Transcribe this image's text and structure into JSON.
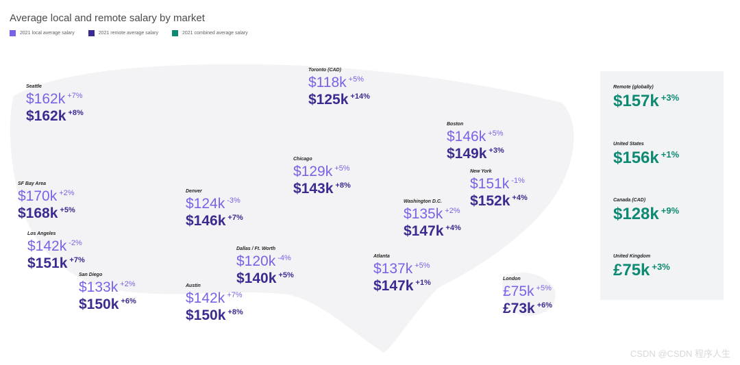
{
  "title": "Average local and remote salary by market",
  "legend": [
    {
      "label": "2021 local average salary",
      "color": "#7b61e8"
    },
    {
      "label": "2021 remote average salary",
      "color": "#3b2a8f"
    },
    {
      "label": "2021 combined average salary",
      "color": "#0e8a73"
    }
  ],
  "colors": {
    "local": "#7b61e8",
    "remote": "#3b2a8f",
    "combined": "#0e8a73"
  },
  "watermark": "CSDN @CSDN 程序人生",
  "chart_data": {
    "type": "table",
    "title": "Average local and remote salary by market",
    "markets": [
      {
        "city": "Seattle",
        "local": "$162k",
        "local_change": "+7%",
        "remote": "$162k",
        "remote_change": "+8%"
      },
      {
        "city": "Toronto (CAD)",
        "local": "$118k",
        "local_change": "+5%",
        "remote": "$125k",
        "remote_change": "+14%"
      },
      {
        "city": "Boston",
        "local": "$146k",
        "local_change": "+5%",
        "remote": "$149k",
        "remote_change": "+3%"
      },
      {
        "city": "Chicago",
        "local": "$129k",
        "local_change": "+5%",
        "remote": "$143k",
        "remote_change": "+8%"
      },
      {
        "city": "New York",
        "local": "$151k",
        "local_change": "-1%",
        "remote": "$152k",
        "remote_change": "+4%"
      },
      {
        "city": "SF Bay Area",
        "local": "$170k",
        "local_change": "+2%",
        "remote": "$168k",
        "remote_change": "+5%"
      },
      {
        "city": "Denver",
        "local": "$124k",
        "local_change": "-3%",
        "remote": "$146k",
        "remote_change": "+7%"
      },
      {
        "city": "Washington D.C.",
        "local": "$135k",
        "local_change": "+2%",
        "remote": "$147k",
        "remote_change": "+4%"
      },
      {
        "city": "Los Angeles",
        "local": "$142k",
        "local_change": "-2%",
        "remote": "$151k",
        "remote_change": "+7%"
      },
      {
        "city": "Dallas / Ft. Worth",
        "local": "$120k",
        "local_change": "-4%",
        "remote": "$140k",
        "remote_change": "+5%"
      },
      {
        "city": "Atlanta",
        "local": "$137k",
        "local_change": "+5%",
        "remote": "$147k",
        "remote_change": "+1%"
      },
      {
        "city": "San Diego",
        "local": "$133k",
        "local_change": "+2%",
        "remote": "$150k",
        "remote_change": "+6%"
      },
      {
        "city": "Austin",
        "local": "$142k",
        "local_change": "+7%",
        "remote": "$150k",
        "remote_change": "+8%"
      },
      {
        "city": "London",
        "local": "£75k",
        "local_change": "+5%",
        "remote": "£73k",
        "remote_change": "+6%"
      }
    ],
    "combined": [
      {
        "market": "Remote (globally)",
        "value": "$157k",
        "change": "+3%"
      },
      {
        "market": "United States",
        "value": "$156k",
        "change": "+1%"
      },
      {
        "market": "Canada (CAD)",
        "value": "$128k",
        "change": "+9%"
      },
      {
        "market": "United Kingdom",
        "value": "£75k",
        "change": "+3%"
      }
    ]
  }
}
